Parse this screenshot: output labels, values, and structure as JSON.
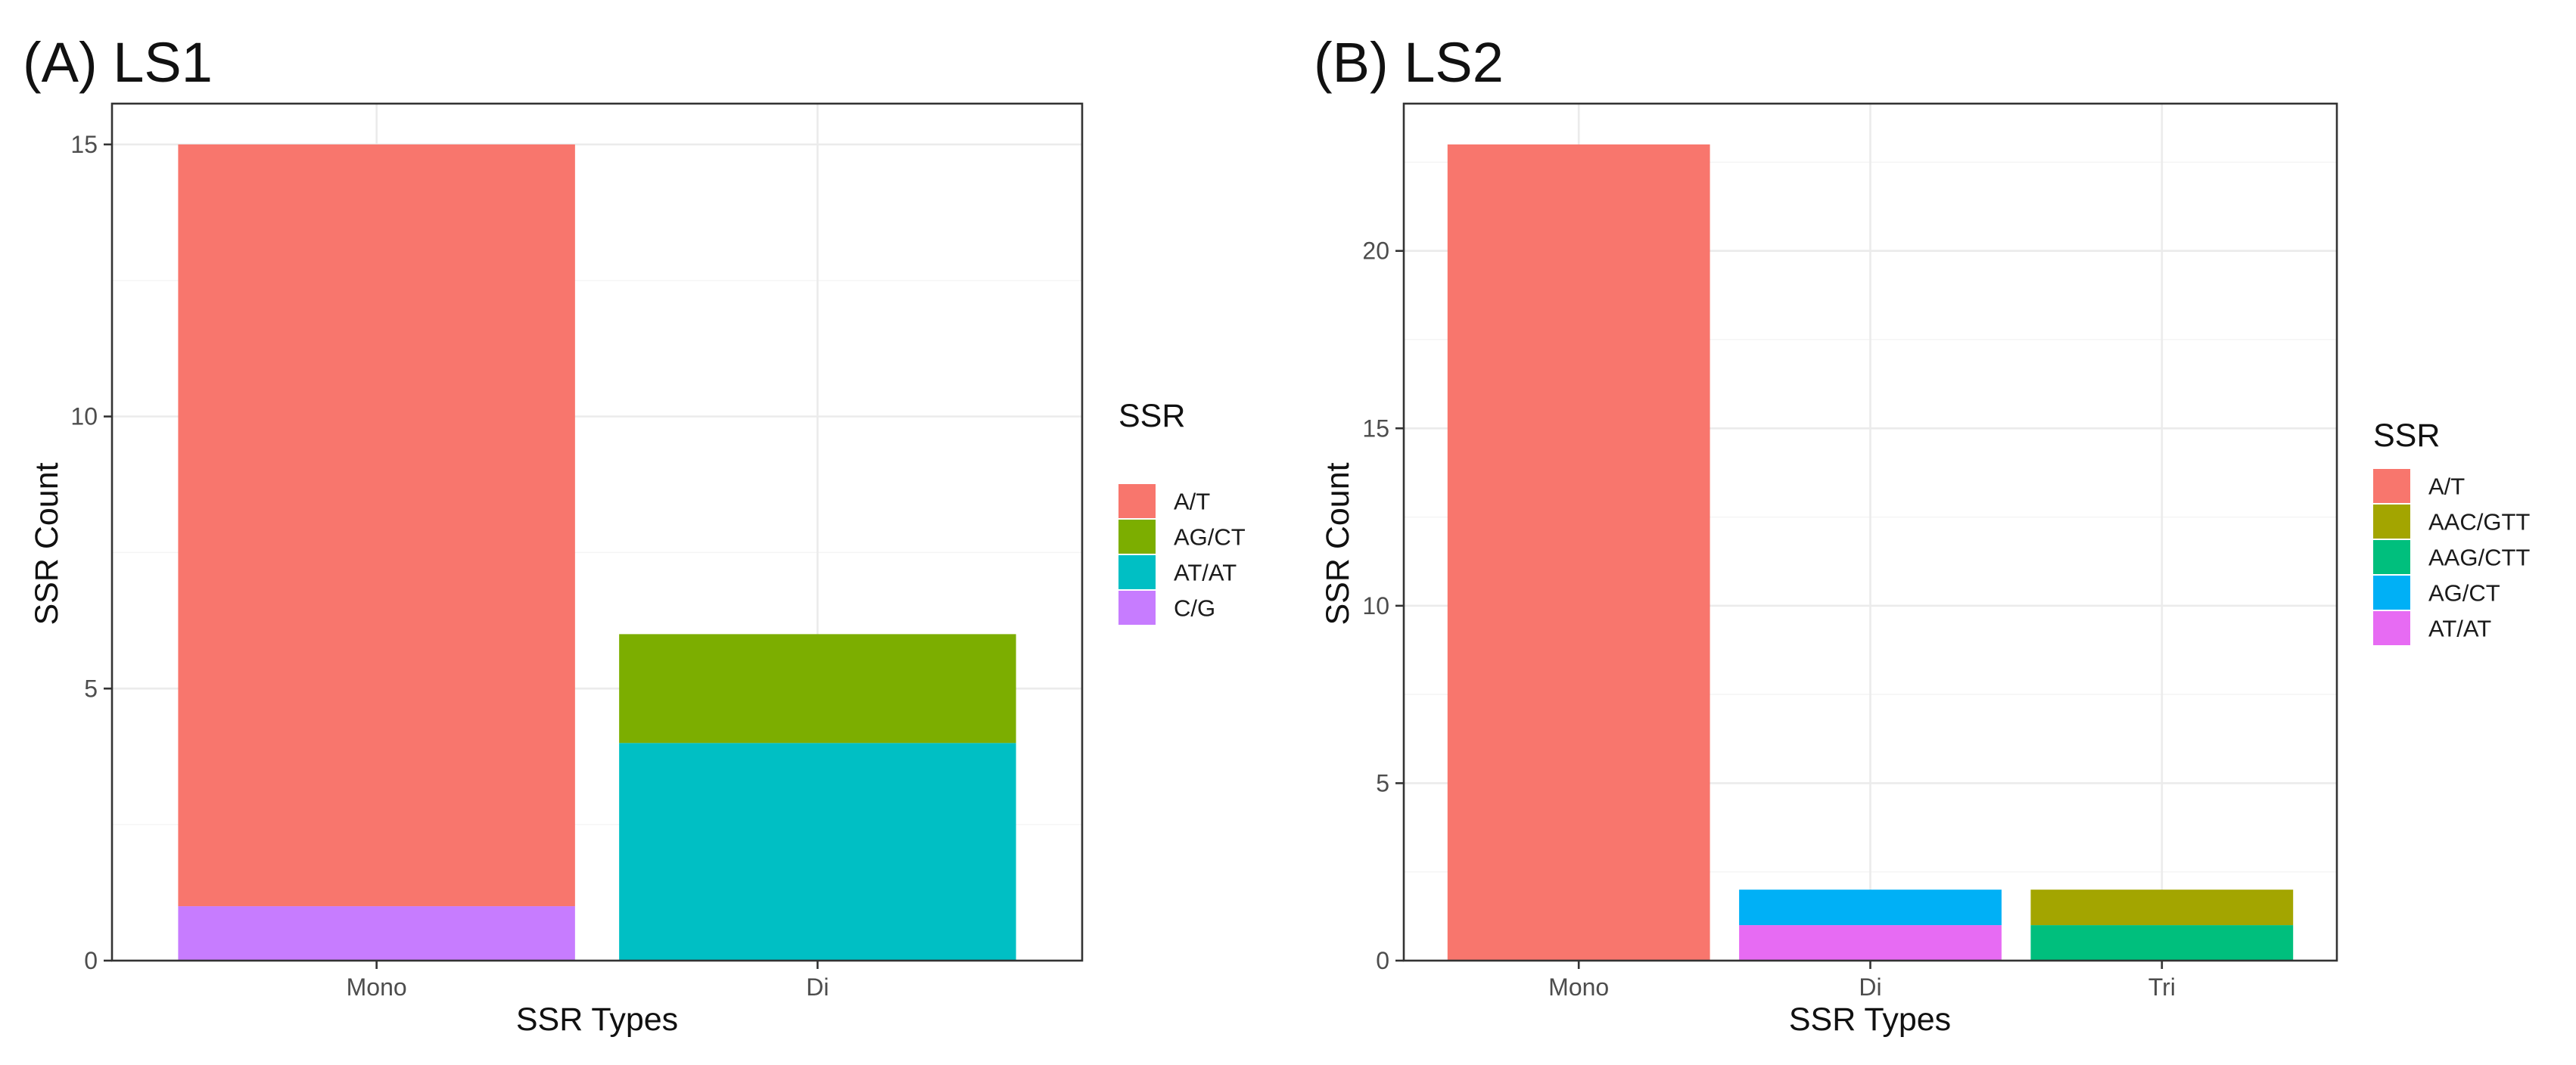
{
  "chart_data": [
    {
      "type": "bar",
      "stacked": true,
      "title": "(A) LS1",
      "xlabel": "SSR Types",
      "ylabel": "SSR Count",
      "categories": [
        "Mono",
        "Di"
      ],
      "ylim": [
        0,
        15.75
      ],
      "yticks": [
        0,
        5,
        10,
        15
      ],
      "legend_title": "SSR",
      "legend": [
        "A/T",
        "AG/CT",
        "AT/AT",
        "C/G"
      ],
      "series": [
        {
          "name": "A/T",
          "color": "#F8766D",
          "values": [
            14,
            0
          ]
        },
        {
          "name": "AG/CT",
          "color": "#7CAE00",
          "values": [
            0,
            2
          ]
        },
        {
          "name": "AT/AT",
          "color": "#00BFC4",
          "values": [
            0,
            4
          ]
        },
        {
          "name": "C/G",
          "color": "#C77CFF",
          "values": [
            1,
            0
          ]
        }
      ],
      "grid": true
    },
    {
      "type": "bar",
      "stacked": true,
      "title": "(B) LS2",
      "xlabel": "SSR Types",
      "ylabel": "SSR Count",
      "categories": [
        "Mono",
        "Di",
        "Tri"
      ],
      "ylim": [
        0,
        24.15
      ],
      "yticks": [
        0,
        5,
        10,
        15,
        20
      ],
      "legend_title": "SSR",
      "legend": [
        "A/T",
        "AAC/GTT",
        "AAG/CTT",
        "AG/CT",
        "AT/AT"
      ],
      "series": [
        {
          "name": "A/T",
          "color": "#F8766D",
          "values": [
            23,
            0,
            0
          ]
        },
        {
          "name": "AAC/GTT",
          "color": "#A3A500",
          "values": [
            0,
            0,
            1
          ]
        },
        {
          "name": "AAG/CTT",
          "color": "#00BF7D",
          "values": [
            0,
            0,
            1
          ]
        },
        {
          "name": "AG/CT",
          "color": "#00B0F6",
          "values": [
            0,
            1,
            0
          ]
        },
        {
          "name": "AT/AT",
          "color": "#E76BF3",
          "values": [
            0,
            1,
            0
          ]
        }
      ],
      "grid": true
    }
  ]
}
